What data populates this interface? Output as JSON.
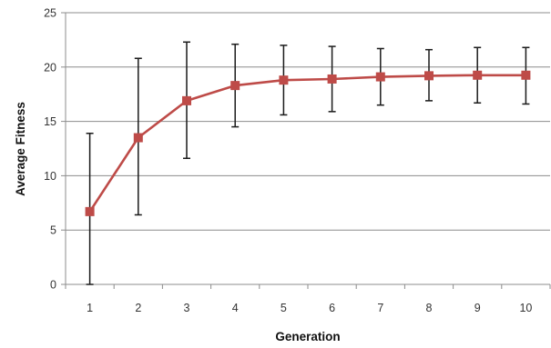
{
  "chart_data": {
    "type": "line",
    "title": "",
    "xlabel": "Generation",
    "ylabel": "Average Fitness",
    "categories": [
      "1",
      "2",
      "3",
      "4",
      "5",
      "6",
      "7",
      "8",
      "9",
      "10"
    ],
    "ylim": [
      0,
      25
    ],
    "yticks": [
      "0",
      "5",
      "10",
      "15",
      "20",
      "25"
    ],
    "grid": "horizontal",
    "legend": "none",
    "series": [
      {
        "values": [
          6.7,
          13.5,
          16.9,
          18.3,
          18.8,
          18.9,
          19.1,
          19.2,
          19.25,
          19.25
        ],
        "error_low": [
          0.0,
          6.4,
          11.6,
          14.5,
          15.6,
          15.9,
          16.5,
          16.9,
          16.7,
          16.6
        ],
        "error_high": [
          13.9,
          20.8,
          22.3,
          22.1,
          22.0,
          21.9,
          21.7,
          21.6,
          21.8,
          21.8
        ],
        "color": "#be4b48",
        "marker": "square"
      }
    ]
  }
}
